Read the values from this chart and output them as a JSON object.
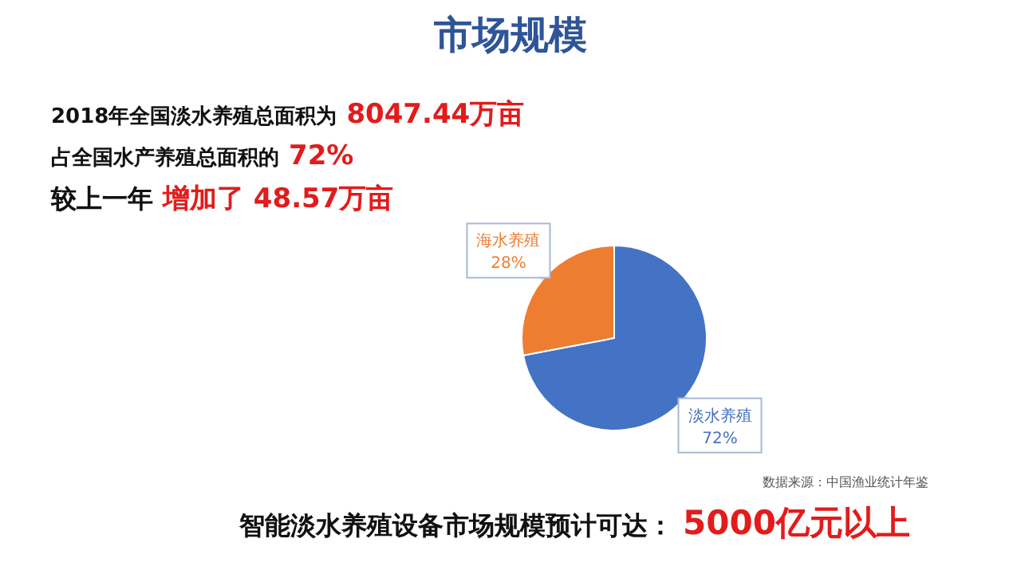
{
  "chart_data": {
    "type": "pie",
    "title": "市场规模",
    "categories": [
      "淡水养殖",
      "海水养殖"
    ],
    "values": [
      72,
      28
    ],
    "colors": [
      "#4472c4",
      "#ed7d31"
    ],
    "value_labels": [
      "72%",
      "28%"
    ],
    "legend": false,
    "annotations": [
      "2018年全国淡水养殖总面积为",
      "8047.44万亩",
      "占全国水产养殖总面积的",
      "72%",
      "较上一年",
      "增加了 48.57万亩",
      "智能淡水养殖设备市场规模预计可达：",
      "5000亿元以上",
      "数据来源：中国渔业统计年鉴"
    ]
  }
}
